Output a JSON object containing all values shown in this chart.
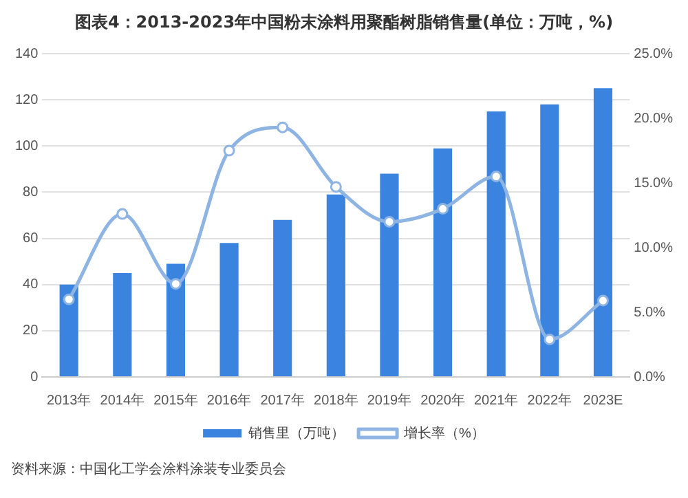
{
  "chart_data": {
    "type": "bar",
    "title": "图表4：2013-2023年中国粉末涂料用聚酯树脂销售量(单位：万吨，%)",
    "categories": [
      "2013年",
      "2014年",
      "2015年",
      "2016年",
      "2017年",
      "2018年",
      "2019年",
      "2020年",
      "2021年",
      "2022年",
      "2023E"
    ],
    "series": [
      {
        "name": "销售里（万吨）",
        "color": "#3a84e0",
        "values": [
          40,
          45,
          49,
          58,
          68,
          79,
          88,
          99,
          115,
          118,
          125
        ]
      },
      {
        "name": "增长率（%）",
        "type": "line",
        "axis": "y2",
        "color": "#8db4e2",
        "values": [
          6.0,
          12.6,
          7.2,
          17.5,
          19.3,
          14.7,
          12.0,
          13.0,
          15.5,
          2.9,
          5.9
        ]
      }
    ],
    "ylim": [
      0,
      140
    ],
    "yticks": [
      0,
      20,
      40,
      60,
      80,
      100,
      120,
      140
    ],
    "y2lim": [
      0,
      25
    ],
    "y2ticks": [
      {
        "value": 0,
        "label": "0.0%"
      },
      {
        "value": 5,
        "label": "5.0%"
      },
      {
        "value": 10,
        "label": "10.0%"
      },
      {
        "value": 15,
        "label": "15.0%"
      },
      {
        "value": 20,
        "label": "20.0%"
      },
      {
        "value": 25,
        "label": "25.0%"
      }
    ],
    "grid": "y",
    "legend": "bottom",
    "marker": "circle",
    "annotations": [
      "资料来源：中国化工学会涂料涂装专业委员会"
    ]
  }
}
